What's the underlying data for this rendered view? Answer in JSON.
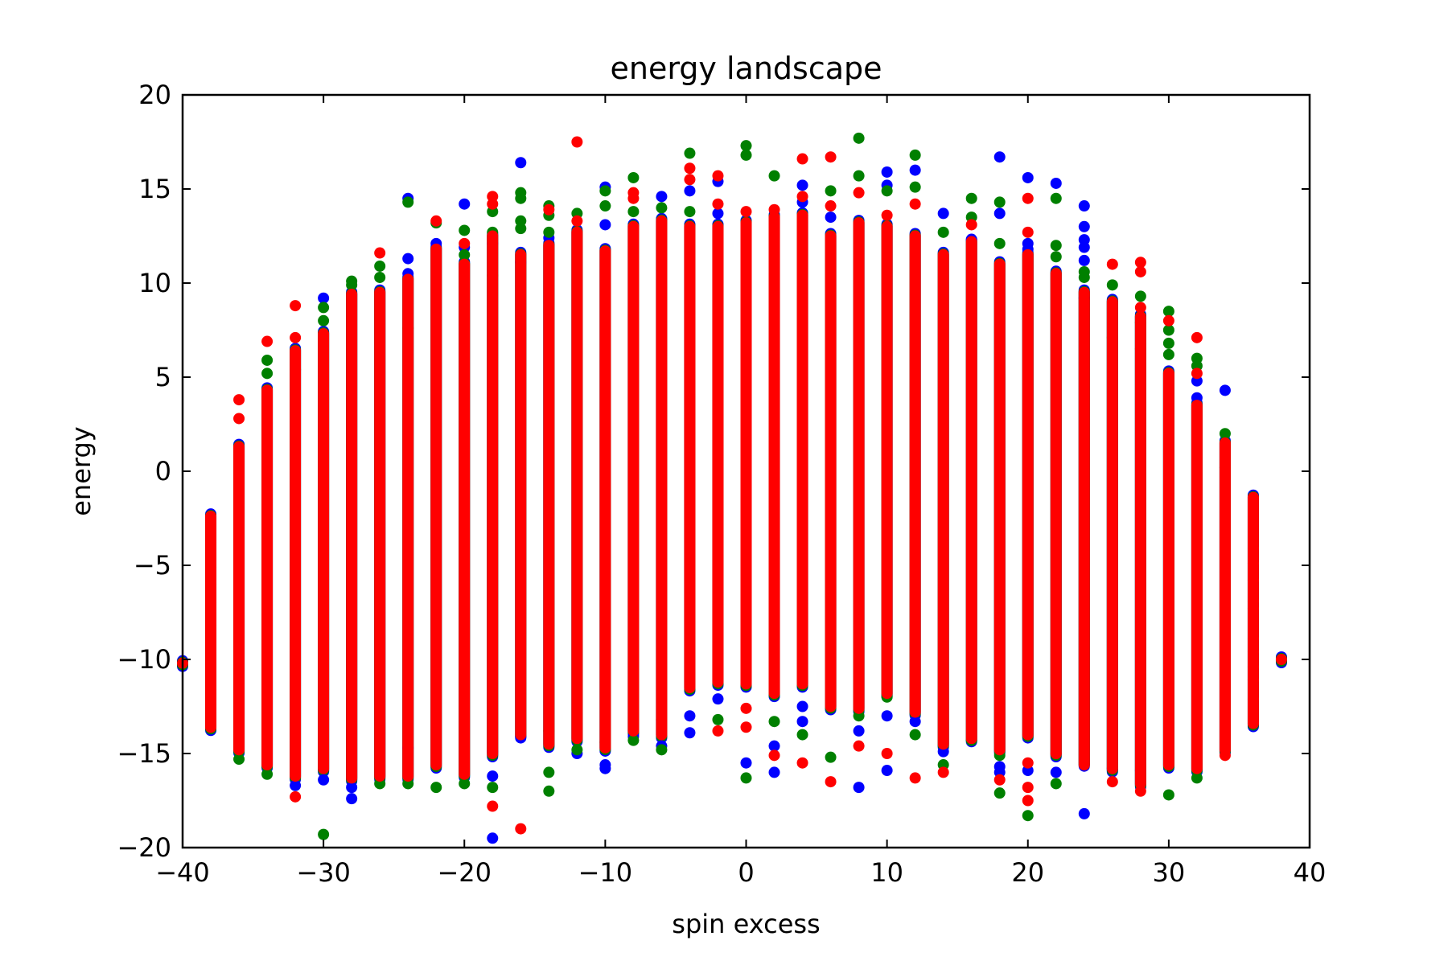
{
  "chart_data": {
    "type": "scatter",
    "title": "energy landscape",
    "xlabel": "spin excess",
    "ylabel": "energy",
    "xlim": [
      -40,
      40
    ],
    "ylim": [
      -20,
      20
    ],
    "xticks": [
      -40,
      -30,
      -20,
      -10,
      0,
      10,
      20,
      30,
      40
    ],
    "yticks": [
      -20,
      -15,
      -10,
      -5,
      0,
      5,
      10,
      15,
      20
    ],
    "xtick_labels": [
      "−40",
      "−30",
      "−20",
      "−10",
      "0",
      "10",
      "20",
      "30",
      "40"
    ],
    "ytick_labels": [
      "−20",
      "−15",
      "−10",
      "−5",
      "0",
      "5",
      "10",
      "15",
      "20"
    ],
    "grid": false,
    "series_colors": [
      "#0000ff",
      "#008000",
      "#ff0000"
    ],
    "columns": [
      {
        "x": -40,
        "ymin": -10.2,
        "ymax": -10.2,
        "blue_outliers": [],
        "green_outliers": [],
        "red_outliers": [
          -10.2
        ]
      },
      {
        "x": -38,
        "ymin": -13.6,
        "ymax": -2.4,
        "blue_outliers": [],
        "green_outliers": [],
        "red_outliers": [
          -2.4,
          -3.8,
          -5.1,
          -6.0,
          -7.0,
          -8.2,
          -9.1,
          -10.4,
          -11.6,
          -12.4,
          -13.6
        ]
      },
      {
        "x": -36,
        "ymin": -14.8,
        "ymax": 1.3,
        "blue_outliers": [],
        "green_outliers": [
          -15.3
        ],
        "red_outliers": [
          3.8,
          2.8
        ]
      },
      {
        "x": -34,
        "ymin": -15.6,
        "ymax": 4.3,
        "blue_outliers": [],
        "green_outliers": [
          -16.1,
          5.9,
          5.2
        ],
        "red_outliers": [
          6.9
        ]
      },
      {
        "x": -32,
        "ymin": -16.2,
        "ymax": 6.4,
        "blue_outliers": [
          -16.7
        ],
        "green_outliers": [
          5.4
        ],
        "red_outliers": [
          8.8,
          7.1,
          -17.3
        ]
      },
      {
        "x": -30,
        "ymin": -15.8,
        "ymax": 7.3,
        "blue_outliers": [
          9.2,
          -16.4
        ],
        "green_outliers": [
          8.7,
          8.0,
          -19.3
        ],
        "red_outliers": []
      },
      {
        "x": -28,
        "ymin": -16.3,
        "ymax": 9.4,
        "blue_outliers": [
          -16.8,
          -17.4
        ],
        "green_outliers": [
          10.1,
          9.9
        ],
        "red_outliers": []
      },
      {
        "x": -26,
        "ymin": -16.2,
        "ymax": 9.5,
        "blue_outliers": [],
        "green_outliers": [
          10.9,
          10.3,
          -16.6
        ],
        "red_outliers": [
          11.6
        ]
      },
      {
        "x": -24,
        "ymin": -16.2,
        "ymax": 10.2,
        "blue_outliers": [
          14.5,
          11.3,
          10.5,
          -14.7
        ],
        "green_outliers": [
          14.3,
          7.6,
          -16.6
        ],
        "red_outliers": []
      },
      {
        "x": -22,
        "ymin": -15.6,
        "ymax": 11.8,
        "blue_outliers": [
          12.1
        ],
        "green_outliers": [
          13.2,
          -16.8
        ],
        "red_outliers": [
          13.3
        ]
      },
      {
        "x": -20,
        "ymin": -16.1,
        "ymax": 11.0,
        "blue_outliers": [
          14.2,
          11.9
        ],
        "green_outliers": [
          12.8,
          11.5,
          -16.6
        ],
        "red_outliers": [
          12.1
        ]
      },
      {
        "x": -18,
        "ymin": -15.0,
        "ymax": 12.5,
        "blue_outliers": [
          12.1,
          -14.9,
          -16.2,
          -19.5
        ],
        "green_outliers": [
          13.8,
          12.7,
          10.4,
          -16.8
        ],
        "red_outliers": [
          14.6,
          14.2,
          -17.8
        ]
      },
      {
        "x": -16,
        "ymin": -14.0,
        "ymax": 11.5,
        "blue_outliers": [
          16.4,
          11.1,
          -14.1
        ],
        "green_outliers": [
          14.8,
          14.5,
          13.3,
          12.9
        ],
        "red_outliers": [
          -19.0
        ]
      },
      {
        "x": -14,
        "ymin": -14.5,
        "ymax": 12.0,
        "blue_outliers": [
          12.4
        ],
        "green_outliers": [
          14.1,
          13.6,
          12.7,
          -13.8,
          -16.0,
          -17.0
        ],
        "red_outliers": [
          13.9
        ]
      },
      {
        "x": -12,
        "ymin": -14.2,
        "ymax": 12.7,
        "blue_outliers": [
          -15.0
        ],
        "green_outliers": [
          13.7,
          -14.8
        ],
        "red_outliers": [
          17.5,
          13.3
        ]
      },
      {
        "x": -10,
        "ymin": -14.7,
        "ymax": 11.7,
        "blue_outliers": [
          15.1,
          13.1,
          -15.6,
          -15.8
        ],
        "green_outliers": [
          14.9,
          14.1,
          -14.4
        ],
        "red_outliers": []
      },
      {
        "x": -8,
        "ymin": -13.8,
        "ymax": 13.0,
        "blue_outliers": [
          -14.1
        ],
        "green_outliers": [
          15.6,
          13.8,
          -14.3
        ],
        "red_outliers": [
          14.8,
          14.5
        ]
      },
      {
        "x": -6,
        "ymin": -14.0,
        "ymax": 13.3,
        "blue_outliers": [
          14.6,
          -14.6
        ],
        "green_outliers": [
          14.0,
          -13.2,
          -14.8
        ],
        "red_outliers": []
      },
      {
        "x": -4,
        "ymin": -11.5,
        "ymax": 13.0,
        "blue_outliers": [
          14.9,
          -13.0,
          -13.9
        ],
        "green_outliers": [
          16.9,
          13.8
        ],
        "red_outliers": [
          16.1,
          15.5
        ]
      },
      {
        "x": -2,
        "ymin": -11.2,
        "ymax": 13.0,
        "blue_outliers": [
          15.4,
          13.7,
          -12.1
        ],
        "green_outliers": [
          -13.2
        ],
        "red_outliers": [
          15.7,
          14.2,
          -13.8
        ]
      },
      {
        "x": 0,
        "ymin": -11.3,
        "ymax": 13.2,
        "blue_outliers": [
          12.5,
          -15.5
        ],
        "green_outliers": [
          17.3,
          16.8,
          -16.3
        ],
        "red_outliers": [
          13.8,
          -12.6,
          -13.6
        ]
      },
      {
        "x": 2,
        "ymin": -11.8,
        "ymax": 13.5,
        "blue_outliers": [
          -14.6,
          -16.0
        ],
        "green_outliers": [
          15.7,
          -13.3
        ],
        "red_outliers": [
          13.9,
          -15.1
        ]
      },
      {
        "x": 4,
        "ymin": -11.3,
        "ymax": 13.6,
        "blue_outliers": [
          15.2,
          14.3,
          -12.5,
          -13.3
        ],
        "green_outliers": [
          13.6,
          -14.0
        ],
        "red_outliers": [
          16.6,
          14.6,
          -15.5
        ]
      },
      {
        "x": 6,
        "ymin": -12.5,
        "ymax": 12.5,
        "blue_outliers": [
          13.5
        ],
        "green_outliers": [
          14.9,
          -15.2
        ],
        "red_outliers": [
          16.7,
          14.1,
          -16.5
        ]
      },
      {
        "x": 8,
        "ymin": -12.6,
        "ymax": 13.2,
        "blue_outliers": [
          -13.8,
          -16.8
        ],
        "green_outliers": [
          17.7,
          15.7,
          -13.0
        ],
        "red_outliers": [
          14.8,
          -14.6
        ]
      },
      {
        "x": 10,
        "ymin": -11.8,
        "ymax": 13.0,
        "blue_outliers": [
          15.9,
          15.2,
          -13.0,
          -15.9
        ],
        "green_outliers": [
          14.9,
          -12.0
        ],
        "red_outliers": [
          13.6,
          -15.0
        ]
      },
      {
        "x": 12,
        "ymin": -12.8,
        "ymax": 12.5,
        "blue_outliers": [
          16.0,
          -13.3
        ],
        "green_outliers": [
          16.8,
          15.1,
          -14.0
        ],
        "red_outliers": [
          14.2,
          -16.3
        ]
      },
      {
        "x": 14,
        "ymin": -14.5,
        "ymax": 11.5,
        "blue_outliers": [
          13.7,
          -14.9
        ],
        "green_outliers": [
          12.7,
          -15.6
        ],
        "red_outliers": [
          -16.0
        ]
      },
      {
        "x": 16,
        "ymin": -14.2,
        "ymax": 12.2,
        "blue_outliers": [
          12.3
        ],
        "green_outliers": [
          14.5,
          13.5,
          -14.3
        ],
        "red_outliers": [
          13.1
        ]
      },
      {
        "x": 18,
        "ymin": -14.8,
        "ymax": 11.0,
        "blue_outliers": [
          16.7,
          13.7,
          -15.7,
          -16.0
        ],
        "green_outliers": [
          14.3,
          12.1,
          -15.1,
          -17.1
        ],
        "red_outliers": [
          -16.4
        ]
      },
      {
        "x": 20,
        "ymin": -14.0,
        "ymax": 11.5,
        "blue_outliers": [
          15.6,
          12.1,
          11.8,
          -15.9
        ],
        "green_outliers": [
          -18.3
        ],
        "red_outliers": [
          14.5,
          12.7,
          -15.5,
          -16.8,
          -17.5
        ]
      },
      {
        "x": 22,
        "ymin": -15.0,
        "ymax": 10.5,
        "blue_outliers": [
          15.3,
          -16.0
        ],
        "green_outliers": [
          14.5,
          12.0,
          11.4,
          -16.6
        ],
        "red_outliers": [
          -15.0
        ]
      },
      {
        "x": 24,
        "ymin": -15.5,
        "ymax": 9.5,
        "blue_outliers": [
          14.1,
          13.0,
          12.3,
          11.9,
          11.2,
          9.2,
          -18.2
        ],
        "green_outliers": [
          10.6,
          10.3
        ],
        "red_outliers": [
          -15.6
        ]
      },
      {
        "x": 26,
        "ymin": -15.8,
        "ymax": 9.0,
        "blue_outliers": [
          -15.8
        ],
        "green_outliers": [
          9.9,
          7.1
        ],
        "red_outliers": [
          11.0,
          -16.5
        ]
      },
      {
        "x": 28,
        "ymin": -16.6,
        "ymax": 8.2,
        "blue_outliers": [
          -15.9
        ],
        "green_outliers": [
          9.3,
          7.9,
          6.5
        ],
        "red_outliers": [
          11.1,
          10.6,
          8.7,
          -17.0
        ]
      },
      {
        "x": 30,
        "ymin": -15.6,
        "ymax": 5.2,
        "blue_outliers": [],
        "green_outliers": [
          8.5,
          7.5,
          6.8,
          6.2,
          -17.2
        ],
        "red_outliers": [
          8.0
        ]
      },
      {
        "x": 32,
        "ymin": -15.8,
        "ymax": 3.5,
        "blue_outliers": [
          4.8,
          3.9
        ],
        "green_outliers": [
          6.0,
          5.6,
          -16.3
        ],
        "red_outliers": [
          7.1,
          5.2
        ]
      },
      {
        "x": 34,
        "ymin": -14.8,
        "ymax": 1.5,
        "blue_outliers": [
          4.3
        ],
        "green_outliers": [
          2.0,
          0.2
        ],
        "red_outliers": [
          -15.1
        ]
      },
      {
        "x": 36,
        "ymin": -13.4,
        "ymax": -1.4,
        "blue_outliers": [],
        "green_outliers": [],
        "red_outliers": [
          -1.4,
          -4.1,
          -4.9,
          -5.8,
          -6.9,
          -7.3,
          -8.9,
          -9.6,
          -10.4,
          -11.1,
          -12.1,
          -13.4
        ]
      },
      {
        "x": 38,
        "ymin": -10.0,
        "ymax": -10.0,
        "blue_outliers": [],
        "green_outliers": [],
        "red_outliers": [
          -10.0
        ]
      }
    ]
  }
}
